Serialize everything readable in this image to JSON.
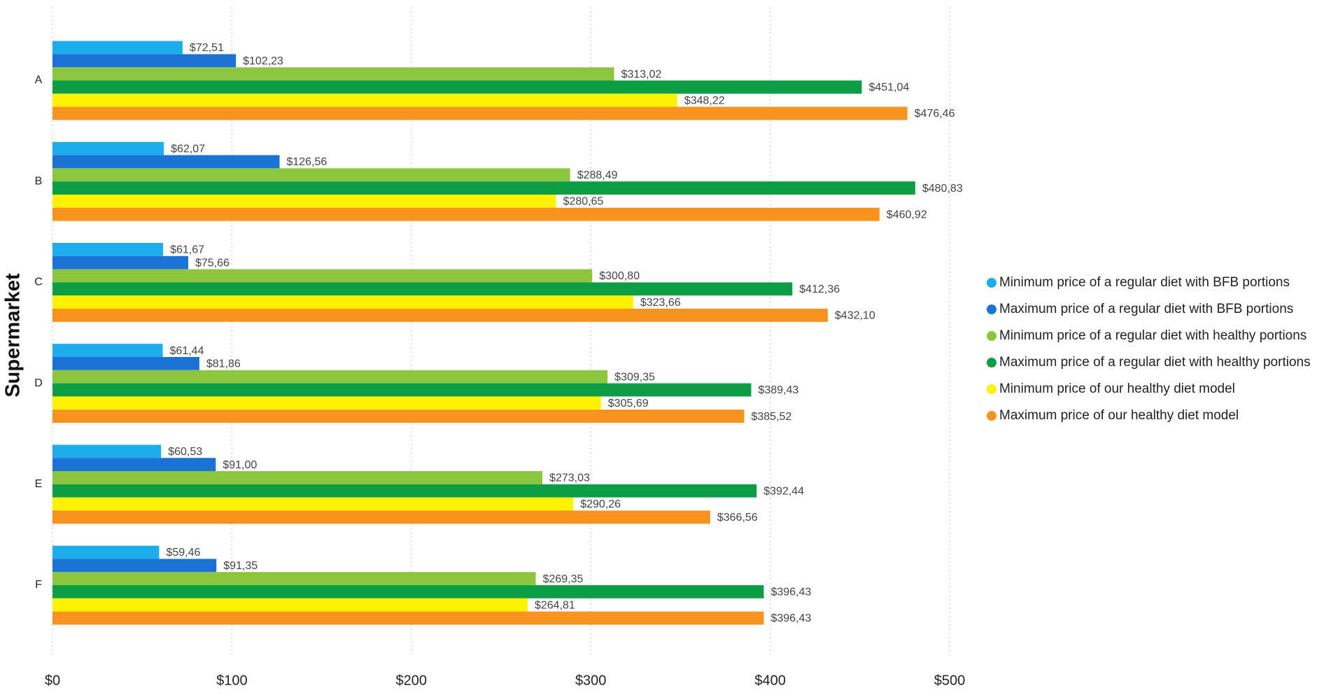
{
  "chart_data": {
    "type": "bar",
    "orientation": "horizontal",
    "y_label": "Supermarket",
    "categories": [
      "A",
      "B",
      "C",
      "D",
      "E",
      "F"
    ],
    "series": [
      {
        "name": "Minimum price of a regular diet with BFB portions",
        "color": "#1cadea",
        "values": [
          72.51,
          62.07,
          61.67,
          61.44,
          60.53,
          59.46
        ],
        "value_labels": [
          "$72,51",
          "$62,07",
          "$61,67",
          "$61,44",
          "$60,53",
          "$59,46"
        ]
      },
      {
        "name": "Maximum price of a regular diet with BFB portions",
        "color": "#1a73d4",
        "values": [
          102.23,
          126.56,
          75.66,
          81.86,
          91.0,
          91.35
        ],
        "value_labels": [
          "$102,23",
          "$126,56",
          "$75,66",
          "$81,86",
          "$91,00",
          "$91,35"
        ]
      },
      {
        "name": "Minimum price of a regular diet with healthy portions",
        "color": "#8cc63f",
        "values": [
          313.02,
          288.49,
          300.8,
          309.35,
          273.03,
          269.35
        ],
        "value_labels": [
          "$313,02",
          "$288,49",
          "$300,80",
          "$309,35",
          "$273,03",
          "$269,35"
        ]
      },
      {
        "name": "Maximum price of a regular diet with healthy portions",
        "color": "#0c9d45",
        "values": [
          451.04,
          480.83,
          412.36,
          389.43,
          392.44,
          396.43
        ],
        "value_labels": [
          "$451,04",
          "$480,83",
          "$412,36",
          "$389,43",
          "$392,44",
          "$396,43"
        ]
      },
      {
        "name": "Minimum price of our healthy diet model",
        "color": "#fff200",
        "values": [
          348.22,
          280.65,
          323.66,
          305.69,
          290.26,
          264.81
        ],
        "value_labels": [
          "$348,22",
          "$280,65",
          "$323,66",
          "$305,69",
          "$290,26",
          "$264,81"
        ]
      },
      {
        "name": "Maximum price of our healthy diet model",
        "color": "#f7931e",
        "values": [
          476.46,
          460.92,
          432.1,
          385.52,
          366.56,
          396.43
        ],
        "value_labels": [
          "$476,46",
          "$460,92",
          "$432,10",
          "$385,52",
          "$366,56",
          "$396,43"
        ]
      }
    ],
    "xlim": [
      0,
      500
    ],
    "xticks": [
      {
        "value": 0,
        "label": "$0"
      },
      {
        "value": 100,
        "label": "$100"
      },
      {
        "value": 200,
        "label": "$200"
      },
      {
        "value": 300,
        "label": "$300"
      },
      {
        "value": 400,
        "label": "$400"
      },
      {
        "value": 500,
        "label": "$500"
      }
    ],
    "grid": true,
    "legend": "right"
  }
}
